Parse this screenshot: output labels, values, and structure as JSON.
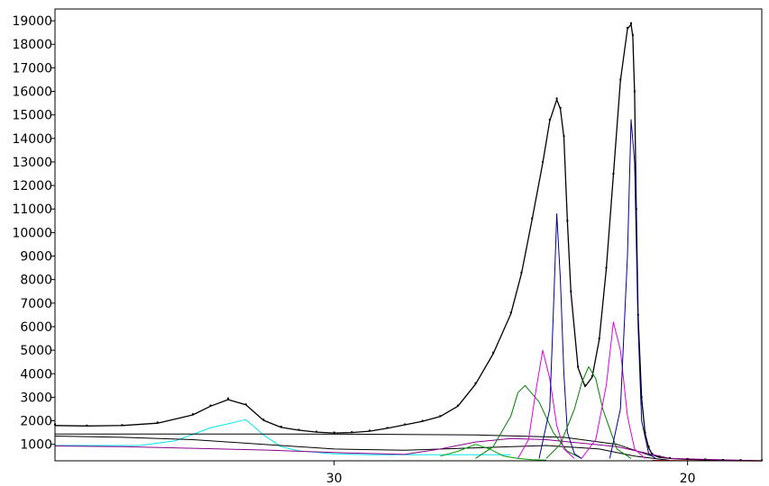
{
  "chart_data": {
    "type": "line",
    "title": "",
    "xlabel": "",
    "ylabel": "",
    "x_reversed": true,
    "xlim": [
      37.9,
      17.9
    ],
    "ylim": [
      300,
      19500
    ],
    "x_ticks": [
      30,
      20
    ],
    "y_ticks": [
      1000,
      2000,
      3000,
      4000,
      5000,
      6000,
      7000,
      8000,
      9000,
      10000,
      11000,
      12000,
      13000,
      14000,
      15000,
      16000,
      17000,
      18000,
      19000
    ],
    "grid": false,
    "legend": "none",
    "observed_points": {
      "color": "#000000",
      "x": [
        37.9,
        37.0,
        36.0,
        35.0,
        34.0,
        33.5,
        33.0,
        32.5,
        32.0,
        31.5,
        31.0,
        30.5,
        30.0,
        29.5,
        29.0,
        28.5,
        28.0,
        27.5,
        27.0,
        26.5,
        26.0,
        25.5,
        25.0,
        24.7,
        24.4,
        24.1,
        23.9,
        23.7,
        23.6,
        23.5,
        23.4,
        23.3,
        23.1,
        22.9,
        22.7,
        22.5,
        22.3,
        22.1,
        21.9,
        21.7,
        21.6,
        21.55,
        21.5,
        21.45,
        21.4,
        21.3,
        21.2,
        21.1,
        21.0,
        20.8,
        20.5,
        20.0,
        19.5,
        19.0,
        18.5,
        17.9
      ],
      "y": [
        1850,
        1800,
        1820,
        1930,
        2280,
        2650,
        2950,
        2700,
        2050,
        1750,
        1620,
        1540,
        1500,
        1520,
        1580,
        1700,
        1850,
        2000,
        2200,
        2650,
        3600,
        4900,
        6600,
        8300,
        10600,
        13000,
        14800,
        15700,
        15300,
        14100,
        10500,
        7500,
        4300,
        3500,
        3900,
        5500,
        8500,
        12500,
        16500,
        18700,
        18900,
        18400,
        16000,
        11000,
        6500,
        3000,
        1500,
        900,
        600,
        480,
        420,
        380,
        360,
        340,
        330,
        320
      ]
    },
    "series": [
      {
        "color": "#000000",
        "x": [
          37.9,
          37.0,
          36.0,
          35.0,
          34.0,
          33.5,
          33.0,
          32.5,
          32.0,
          31.5,
          31.0,
          30.5,
          30.0,
          29.5,
          29.0,
          28.5,
          28.0,
          27.5,
          27.0,
          26.5,
          26.0,
          25.5,
          25.0,
          24.7,
          24.4,
          24.1,
          23.9,
          23.7,
          23.6,
          23.5,
          23.4,
          23.3,
          23.1,
          22.9,
          22.7,
          22.5,
          22.3,
          22.1,
          21.9,
          21.7,
          21.6,
          21.55,
          21.5,
          21.45,
          21.4,
          21.3,
          21.2,
          21.1,
          21.0,
          20.8,
          20.5,
          20.0,
          19.5,
          19.0,
          18.5,
          17.9
        ],
        "values": [
          1800,
          1780,
          1800,
          1900,
          2250,
          2620,
          2900,
          2680,
          2020,
          1720,
          1600,
          1520,
          1480,
          1500,
          1560,
          1680,
          1830,
          1980,
          2180,
          2620,
          3560,
          4850,
          6550,
          8250,
          10550,
          12950,
          14750,
          15650,
          15250,
          14050,
          10450,
          7450,
          4250,
          3450,
          3850,
          5450,
          8450,
          12450,
          16450,
          18650,
          18850,
          18350,
          15950,
          10950,
          6450,
          2950,
          1450,
          850,
          560,
          450,
          400,
          360,
          340,
          320,
          310,
          300
        ]
      },
      {
        "color": "#00e5ee",
        "x": [
          37.9,
          35.5,
          34.5,
          33.5,
          32.5,
          32.0,
          31.5,
          31.0,
          30.0,
          29.0,
          27.0,
          25.0
        ],
        "values": [
          950,
          950,
          1150,
          1700,
          2050,
          1400,
          900,
          720,
          600,
          560,
          560,
          560
        ]
      },
      {
        "color": "#000000",
        "x": [
          37.9,
          35.0,
          32.0,
          29.0,
          26.0,
          23.5,
          22.0,
          21.0
        ],
        "values": [
          1440,
          1440,
          1440,
          1430,
          1400,
          1300,
          1000,
          500
        ]
      },
      {
        "color": "#000000",
        "x": [
          37.9,
          36.0,
          34.0,
          33.0,
          32.0,
          30.0,
          28.0,
          26.0,
          24.0,
          22.5,
          21.5,
          20.5
        ],
        "values": [
          1350,
          1300,
          1200,
          1100,
          1000,
          800,
          750,
          850,
          950,
          800,
          500,
          320
        ]
      },
      {
        "color": "#8b008b",
        "x": [
          37.9,
          36.0,
          34.0,
          32.0,
          30.0,
          28.0,
          27.0,
          26.0,
          25.0,
          24.0,
          22.0,
          20.5,
          17.9
        ],
        "values": [
          930,
          900,
          830,
          760,
          650,
          570,
          800,
          1100,
          1250,
          1200,
          900,
          400,
          300
        ]
      },
      {
        "color": "#00a000",
        "x": [
          27.0,
          26.5,
          26.0,
          25.6,
          25.2,
          24.8,
          24.4,
          24.0
        ],
        "values": [
          500,
          700,
          1000,
          800,
          500,
          400,
          350,
          330
        ]
      },
      {
        "color": "#008000",
        "x": [
          26.0,
          25.5,
          25.0,
          24.8,
          24.6,
          24.2,
          23.8,
          23.4,
          23.0
        ],
        "values": [
          400,
          900,
          2200,
          3200,
          3500,
          2800,
          1500,
          700,
          400
        ]
      },
      {
        "color": "#e000e0",
        "x": [
          24.8,
          24.5,
          24.3,
          24.1,
          23.9,
          23.7,
          23.5,
          23.2
        ],
        "values": [
          400,
          1200,
          3200,
          5000,
          3800,
          1800,
          800,
          400
        ]
      },
      {
        "color": "#000090",
        "x": [
          24.2,
          23.9,
          23.8,
          23.7,
          23.6,
          23.5,
          23.4,
          23.2,
          23.0
        ],
        "values": [
          400,
          2500,
          6500,
          10800,
          8000,
          4000,
          1500,
          600,
          400
        ]
      },
      {
        "color": "#008000",
        "x": [
          24.0,
          23.6,
          23.2,
          23.0,
          22.8,
          22.6,
          22.4,
          22.0,
          21.6
        ],
        "values": [
          400,
          1000,
          2500,
          3600,
          4300,
          3800,
          2500,
          800,
          400
        ]
      },
      {
        "color": "#e000e0",
        "x": [
          23.0,
          22.6,
          22.3,
          22.1,
          21.9,
          21.7,
          21.5,
          21.2
        ],
        "values": [
          400,
          1200,
          3500,
          6200,
          5000,
          2200,
          800,
          400
        ]
      },
      {
        "color": "#000090",
        "x": [
          22.2,
          21.9,
          21.7,
          21.6,
          21.5,
          21.4,
          21.3,
          21.1,
          20.9
        ],
        "values": [
          400,
          2500,
          9000,
          14800,
          13000,
          6000,
          2000,
          600,
          400
        ]
      },
      {
        "color": "#ff0000",
        "x": [
          21.0,
          20.0,
          19.0,
          17.9
        ],
        "values": [
          320,
          310,
          300,
          290
        ]
      }
    ]
  }
}
